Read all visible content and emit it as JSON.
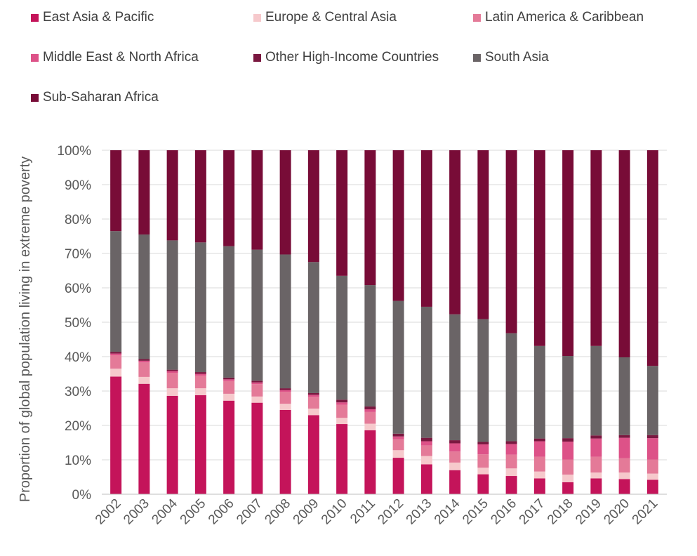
{
  "chart_data": {
    "type": "bar",
    "stacked": true,
    "categories": [
      "2002",
      "2003",
      "2004",
      "2005",
      "2006",
      "2007",
      "2008",
      "2009",
      "2010",
      "2011",
      "2012",
      "2013",
      "2014",
      "2015",
      "2016",
      "2017",
      "2018",
      "2019",
      "2020",
      "2021"
    ],
    "ylabel": "Proportion of global population living in extreme poverty",
    "ylim": [
      0,
      100
    ],
    "yticks": [
      "0%",
      "10%",
      "20%",
      "30%",
      "40%",
      "50%",
      "60%",
      "70%",
      "80%",
      "90%",
      "100%"
    ],
    "grid": true,
    "legend_position": "top",
    "series": [
      {
        "name": "East Asia & Pacific",
        "color": "#c4145a",
        "values": [
          34.2,
          32.1,
          28.6,
          28.8,
          27.2,
          26.6,
          24.5,
          23.0,
          20.4,
          18.6,
          10.6,
          8.7,
          7.0,
          5.8,
          5.3,
          4.6,
          3.5,
          4.6,
          4.4,
          4.2
        ]
      },
      {
        "name": "Europe & Central Asia",
        "color": "#f6c9cc",
        "values": [
          2.3,
          2.0,
          2.2,
          2.0,
          2.0,
          1.8,
          1.8,
          1.9,
          1.8,
          1.9,
          2.2,
          2.4,
          2.2,
          1.9,
          2.2,
          2.0,
          2.2,
          1.7,
          1.9,
          1.8
        ]
      },
      {
        "name": "Latin America & Caribbean",
        "color": "#e47a98",
        "values": [
          3.9,
          4.2,
          4.5,
          3.7,
          3.7,
          3.6,
          3.5,
          3.4,
          3.8,
          3.4,
          3.2,
          3.1,
          3.2,
          3.9,
          4.0,
          4.3,
          4.4,
          4.6,
          4.2,
          4.1
        ]
      },
      {
        "name": "Middle East & North Africa",
        "color": "#dd5288",
        "values": [
          0.5,
          0.5,
          0.5,
          0.5,
          0.5,
          0.5,
          0.5,
          0.6,
          0.7,
          0.8,
          0.8,
          1.2,
          2.4,
          2.9,
          3.1,
          4.5,
          5.2,
          5.3,
          5.9,
          6.2
        ]
      },
      {
        "name": "Other High-Income Countries",
        "color": "#7a1840",
        "values": [
          0.5,
          0.5,
          0.4,
          0.5,
          0.5,
          0.5,
          0.5,
          0.5,
          0.8,
          0.8,
          0.8,
          1.0,
          0.9,
          0.7,
          0.8,
          0.8,
          1.0,
          0.9,
          0.8,
          0.9
        ]
      },
      {
        "name": "South Asia",
        "color": "#6a6466",
        "values": [
          35.1,
          36.2,
          37.6,
          37.7,
          38.2,
          38.1,
          38.9,
          38.1,
          36.0,
          35.3,
          38.6,
          38.1,
          36.6,
          35.7,
          31.4,
          26.9,
          23.9,
          26.0,
          22.6,
          20.1
        ]
      },
      {
        "name": "Sub-Saharan Africa",
        "color": "#780c37",
        "values": [
          23.5,
          24.5,
          26.2,
          26.8,
          27.9,
          28.9,
          30.3,
          32.5,
          36.5,
          39.2,
          43.8,
          45.5,
          47.7,
          49.1,
          53.2,
          56.9,
          59.8,
          56.9,
          60.2,
          62.7
        ]
      }
    ]
  }
}
